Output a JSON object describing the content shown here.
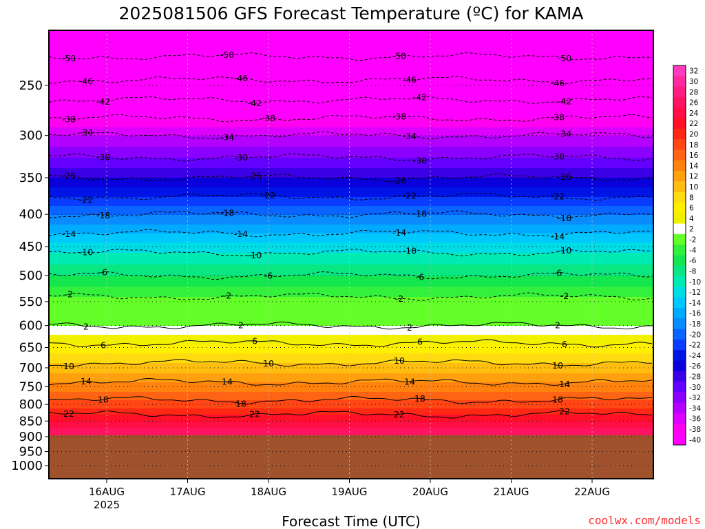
{
  "chart_data": {
    "type": "heatmap",
    "title": "2025081506 GFS Forecast Temperature (ºC) for KAMA",
    "xlabel": "Forecast Time (UTC)",
    "ylabel": "",
    "x_ticks": [
      {
        "label": "16AUG",
        "sub": "2025"
      },
      {
        "label": "17AUG",
        "sub": ""
      },
      {
        "label": "18AUG",
        "sub": ""
      },
      {
        "label": "19AUG",
        "sub": ""
      },
      {
        "label": "20AUG",
        "sub": ""
      },
      {
        "label": "21AUG",
        "sub": ""
      },
      {
        "label": "22AUG",
        "sub": ""
      }
    ],
    "y_axis": {
      "scale": "log",
      "inverted": true,
      "units": "hPa",
      "ticks": [
        "250",
        "300",
        "350",
        "400",
        "450",
        "500",
        "550",
        "600",
        "650",
        "700",
        "750",
        "800",
        "850",
        "900",
        "950",
        "1000"
      ]
    },
    "surface_pressure": 895,
    "colorbar_labels": [
      "32",
      "30",
      "28",
      "26",
      "24",
      "22",
      "20",
      "18",
      "16",
      "14",
      "12",
      "10",
      "8",
      "6",
      "4",
      "2",
      "-2",
      "-4",
      "-6",
      "-8",
      "-10",
      "-12",
      "-14",
      "-16",
      "-18",
      "-20",
      "-22",
      "-24",
      "-26",
      "-28",
      "-30",
      "-32",
      "-34",
      "-36",
      "-38",
      "-40"
    ],
    "colorbar_colors": [
      "#ff3cbe",
      "#ff2aa0",
      "#ff1e82",
      "#ff1464",
      "#ff0f46",
      "#ff0f28",
      "#ff2814",
      "#ff4614",
      "#ff6414",
      "#ff820f",
      "#ffa00f",
      "#ffbe0f",
      "#ffdc0f",
      "#fff000",
      "#f0f000",
      "#ffffff",
      "#64ff28",
      "#32f03c",
      "#14e650",
      "#0ae682",
      "#00ebb4",
      "#00dce6",
      "#00c8ff",
      "#00aaff",
      "#0a8cff",
      "#0a64ff",
      "#0a3cff",
      "#0014e6",
      "#0a00dc",
      "#3c00e6",
      "#6400ff",
      "#8c00ff",
      "#b400ff",
      "#dc00ff",
      "#ff00f0",
      "#ff00ff"
    ],
    "profile": [
      {
        "p": 200,
        "t": -55
      },
      {
        "p": 250,
        "t": -45
      },
      {
        "p": 300,
        "t": -34
      },
      {
        "p": 350,
        "t": -26
      },
      {
        "p": 400,
        "t": -18
      },
      {
        "p": 450,
        "t": -11
      },
      {
        "p": 500,
        "t": -6
      },
      {
        "p": 550,
        "t": -1
      },
      {
        "p": 600,
        "t": 2
      },
      {
        "p": 650,
        "t": 7
      },
      {
        "p": 700,
        "t": 11
      },
      {
        "p": 750,
        "t": 15
      },
      {
        "p": 800,
        "t": 19
      },
      {
        "p": 850,
        "t": 24
      },
      {
        "p": 895,
        "t": 28
      }
    ],
    "contour_labels": [
      "-50",
      "-46",
      "-42",
      "-38",
      "-34",
      "-30",
      "-26",
      "-22",
      "-18",
      "-14",
      "-10",
      "-6",
      "-2",
      "2",
      "6",
      "10",
      "14",
      "18",
      "22"
    ],
    "grid": true
  },
  "credit": "coolwx.com/models"
}
